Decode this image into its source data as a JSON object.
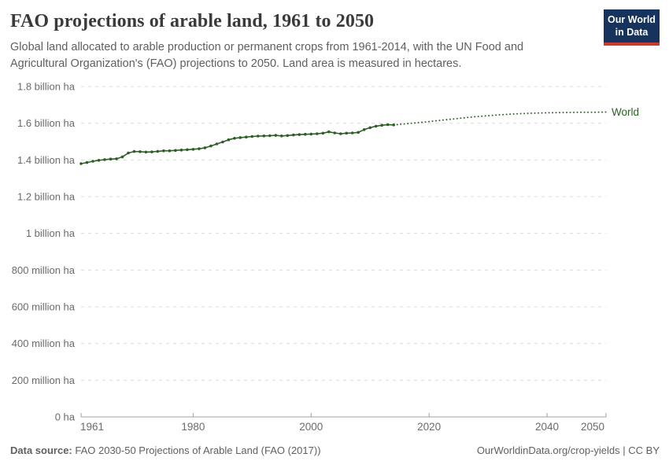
{
  "header": {
    "title": "FAO projections of arable land, 1961 to 2050",
    "subtitle": "Global land allocated to arable production or permanent crops from 1961-2014, with the UN Food and Agricultural Organization's (FAO) projections to 2050. Land area is measured in hectares.",
    "logo": {
      "line1": "Our World",
      "line2": "in Data",
      "bg_color": "#15335c",
      "accent_color": "#cb3a31"
    }
  },
  "footer": {
    "source_label": "Data source:",
    "source_text": " FAO 2030-50 Projections of Arable Land (FAO (2017))",
    "right_text": "OurWorldinData.org/crop-yields | CC BY"
  },
  "chart_data": {
    "type": "line",
    "title": "FAO projections of arable land, 1961 to 2050",
    "unit": "billion ha",
    "series_label": "World",
    "line_color": "#2d5e26",
    "grid_color": "#dcdcdc",
    "axis_color": "#a0a0a0",
    "tick_label_color": "#6b6b6b",
    "xlim": [
      1961,
      2050
    ],
    "ylim_billion_ha": [
      0,
      1.8
    ],
    "grid": "horizontal-dashed",
    "legend_position": "end-of-line",
    "yticks": [
      {
        "value": 0,
        "label": "0 ha"
      },
      {
        "value": 0.2,
        "label": "200 million ha"
      },
      {
        "value": 0.4,
        "label": "400 million ha"
      },
      {
        "value": 0.6,
        "label": "600 million ha"
      },
      {
        "value": 0.8,
        "label": "800 million ha"
      },
      {
        "value": 1.0,
        "label": "1 billion ha"
      },
      {
        "value": 1.2,
        "label": "1.2 billion ha"
      },
      {
        "value": 1.4,
        "label": "1.4 billion ha"
      },
      {
        "value": 1.6,
        "label": "1.6 billion ha"
      },
      {
        "value": 1.8,
        "label": "1.8 billion ha"
      }
    ],
    "xticks": [
      {
        "year": 1961,
        "label": "1961",
        "label_x_offset": 14
      },
      {
        "year": 1980,
        "label": "1980",
        "label_x_offset": 0
      },
      {
        "year": 2000,
        "label": "2000",
        "label_x_offset": 0
      },
      {
        "year": 2020,
        "label": "2020",
        "label_x_offset": 0
      },
      {
        "year": 2040,
        "label": "2040",
        "label_x_offset": 0
      },
      {
        "year": 2050,
        "label": "2050",
        "label_x_offset": -17
      }
    ],
    "historical": {
      "style": "solid-with-markers",
      "years": [
        1961,
        1962,
        1963,
        1964,
        1965,
        1966,
        1967,
        1968,
        1969,
        1970,
        1971,
        1972,
        1973,
        1974,
        1975,
        1976,
        1977,
        1978,
        1979,
        1980,
        1981,
        1982,
        1983,
        1984,
        1985,
        1986,
        1987,
        1988,
        1989,
        1990,
        1991,
        1992,
        1993,
        1994,
        1995,
        1996,
        1997,
        1998,
        1999,
        2000,
        2001,
        2002,
        2003,
        2004,
        2005,
        2006,
        2007,
        2008,
        2009,
        2010,
        2011,
        2012,
        2013,
        2014
      ],
      "values_billion_ha": [
        1.38,
        1.386,
        1.393,
        1.398,
        1.402,
        1.405,
        1.406,
        1.417,
        1.438,
        1.446,
        1.445,
        1.443,
        1.444,
        1.447,
        1.45,
        1.45,
        1.452,
        1.454,
        1.456,
        1.458,
        1.461,
        1.466,
        1.476,
        1.487,
        1.498,
        1.51,
        1.518,
        1.522,
        1.525,
        1.528,
        1.53,
        1.531,
        1.532,
        1.534,
        1.531,
        1.533,
        1.536,
        1.538,
        1.54,
        1.541,
        1.543,
        1.546,
        1.553,
        1.547,
        1.543,
        1.546,
        1.547,
        1.55,
        1.565,
        1.576,
        1.584,
        1.589,
        1.592,
        1.591
      ]
    },
    "projection": {
      "style": "dotted",
      "years": [
        2014,
        2016,
        2018,
        2020,
        2022,
        2024,
        2026,
        2028,
        2030,
        2032,
        2034,
        2036,
        2038,
        2040,
        2042,
        2044,
        2046,
        2048,
        2050
      ],
      "values_billion_ha": [
        1.591,
        1.597,
        1.603,
        1.609,
        1.616,
        1.623,
        1.63,
        1.636,
        1.641,
        1.646,
        1.65,
        1.653,
        1.655,
        1.657,
        1.658,
        1.659,
        1.66,
        1.66,
        1.661
      ]
    }
  }
}
